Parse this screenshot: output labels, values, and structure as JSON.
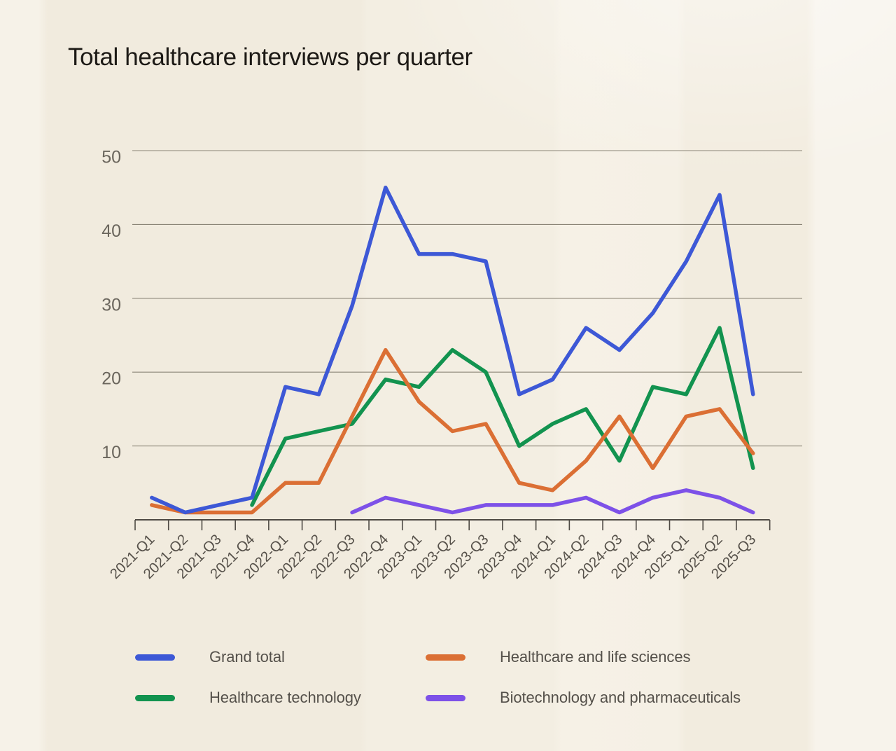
{
  "chart_data": {
    "type": "line",
    "title": "Total healthcare interviews per quarter",
    "categories": [
      "2021-Q1",
      "2021-Q2",
      "2021-Q3",
      "2021-Q4",
      "2022-Q1",
      "2022-Q2",
      "2022-Q3",
      "2022-Q4",
      "2023-Q1",
      "2023-Q2",
      "2023-Q3",
      "2023-Q4",
      "2024-Q1",
      "2024-Q2",
      "2024-Q3",
      "2024-Q4",
      "2025-Q1",
      "2025-Q2",
      "2025-Q3"
    ],
    "series": [
      {
        "name": "Grand total",
        "color": "#3D58D6",
        "values": [
          3,
          1,
          2,
          3,
          18,
          17,
          29,
          45,
          36,
          36,
          35,
          17,
          19,
          26,
          23,
          28,
          35,
          44,
          17
        ]
      },
      {
        "name": "Healthcare and life sciences",
        "color": "#DB6F34",
        "values": [
          2,
          1,
          1,
          1,
          5,
          5,
          14,
          23,
          16,
          12,
          13,
          5,
          4,
          8,
          14,
          7,
          14,
          15,
          9
        ]
      },
      {
        "name": "Healthcare technology",
        "color": "#12934F",
        "values": [
          null,
          null,
          null,
          2,
          11,
          12,
          13,
          19,
          18,
          23,
          20,
          10,
          13,
          15,
          8,
          18,
          17,
          26,
          7
        ]
      },
      {
        "name": "Biotechnology and pharmaceuticals",
        "color": "#7D51E8",
        "values": [
          null,
          null,
          null,
          null,
          null,
          null,
          1,
          3,
          2,
          1,
          2,
          2,
          2,
          3,
          1,
          3,
          4,
          3,
          1
        ]
      }
    ],
    "xlabel": "",
    "ylabel": "",
    "yticks": [
      10,
      20,
      30,
      40,
      50
    ],
    "ylim": [
      0,
      52
    ],
    "grid": "horizontal-only",
    "legend_position": "bottom-two-columns",
    "colors": {
      "title_text": "#1D1A16",
      "grid_line": "#8B8577",
      "axis_line": "#4E4A44",
      "y_tick_label": "#6B665D",
      "x_tick_label": "#56514A",
      "legend_text": "#54504A"
    }
  }
}
